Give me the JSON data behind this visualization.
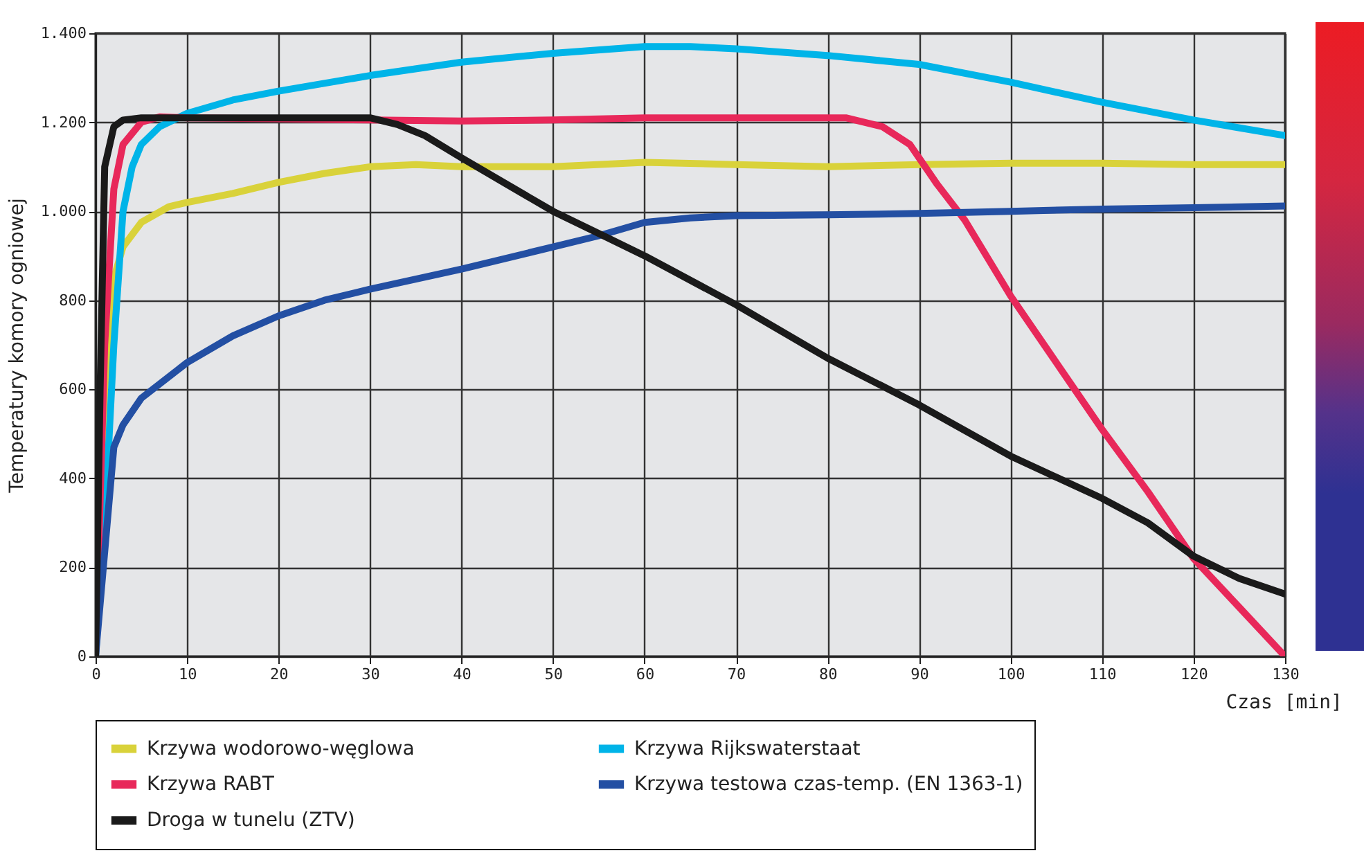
{
  "chart_data": {
    "type": "line",
    "xlabel": "Czas [min]",
    "ylabel": "Temperatury komory ogniowej",
    "xlim": [
      0,
      130
    ],
    "xticks": [
      0,
      10,
      20,
      30,
      40,
      50,
      60,
      70,
      80,
      90,
      100,
      110,
      120,
      130
    ],
    "ylim": [
      0,
      1400
    ],
    "yticks": [
      0,
      200,
      400,
      600,
      800,
      {
        "value": 1000,
        "label": "1.000"
      },
      {
        "value": 1200,
        "label": "1.200"
      },
      {
        "value": 1400,
        "label": "1.400"
      }
    ],
    "grid": true,
    "legend": "bottom",
    "series": [
      {
        "name": "Krzywa wodorowo-węglowa",
        "color": "#d9d23a",
        "x": [
          0,
          1,
          2,
          3,
          5,
          8,
          10,
          15,
          20,
          25,
          30,
          35,
          40,
          50,
          60,
          70,
          80,
          90,
          100,
          110,
          120,
          130
        ],
        "values": [
          0,
          600,
          850,
          920,
          975,
          1010,
          1020,
          1040,
          1065,
          1085,
          1100,
          1105,
          1100,
          1100,
          1110,
          1105,
          1100,
          1105,
          1108,
          1108,
          1105,
          1105
        ]
      },
      {
        "name": "Krzywa Rijkswaterstaat",
        "color": "#00b4e8",
        "x": [
          0,
          1,
          2,
          3,
          4,
          5,
          7,
          10,
          15,
          20,
          30,
          40,
          50,
          60,
          65,
          70,
          80,
          90,
          100,
          110,
          120,
          130
        ],
        "values": [
          0,
          300,
          700,
          1000,
          1100,
          1150,
          1190,
          1220,
          1250,
          1270,
          1305,
          1335,
          1355,
          1370,
          1370,
          1365,
          1350,
          1330,
          1290,
          1245,
          1205,
          1170
        ]
      },
      {
        "name": "Krzywa RABT",
        "color": "#e8285a",
        "x": [
          0,
          1,
          2,
          3,
          5,
          7,
          10,
          20,
          30,
          40,
          50,
          60,
          70,
          80,
          82,
          86,
          89,
          92,
          95,
          100,
          105,
          110,
          115,
          120,
          125,
          130
        ],
        "values": [
          0,
          700,
          1050,
          1150,
          1200,
          1212,
          1210,
          1208,
          1205,
          1203,
          1205,
          1210,
          1210,
          1210,
          1210,
          1190,
          1150,
          1060,
          980,
          810,
          660,
          510,
          370,
          220,
          110,
          0
        ]
      },
      {
        "name": "Krzywa testowa czas-temp. (EN 1363-1)",
        "color": "#234fa3",
        "x": [
          0,
          2,
          3,
          5,
          10,
          15,
          20,
          25,
          30,
          40,
          50,
          55,
          60,
          65,
          70,
          80,
          90,
          100,
          110,
          120,
          130
        ],
        "values": [
          0,
          470,
          520,
          580,
          660,
          720,
          765,
          800,
          825,
          870,
          920,
          945,
          975,
          985,
          990,
          992,
          995,
          1000,
          1005,
          1008,
          1012
        ]
      },
      {
        "name": "Droga w tunelu (ZTV)",
        "color": "#1a1a1a",
        "x": [
          0,
          0.5,
          1,
          2,
          3,
          5,
          10,
          20,
          30,
          33,
          36,
          40,
          45,
          50,
          55,
          60,
          70,
          80,
          90,
          100,
          110,
          115,
          120,
          125,
          130
        ],
        "values": [
          0,
          600,
          1100,
          1190,
          1205,
          1210,
          1210,
          1210,
          1210,
          1195,
          1170,
          1120,
          1060,
          1000,
          950,
          900,
          790,
          670,
          565,
          450,
          355,
          300,
          225,
          175,
          140
        ]
      }
    ]
  }
}
